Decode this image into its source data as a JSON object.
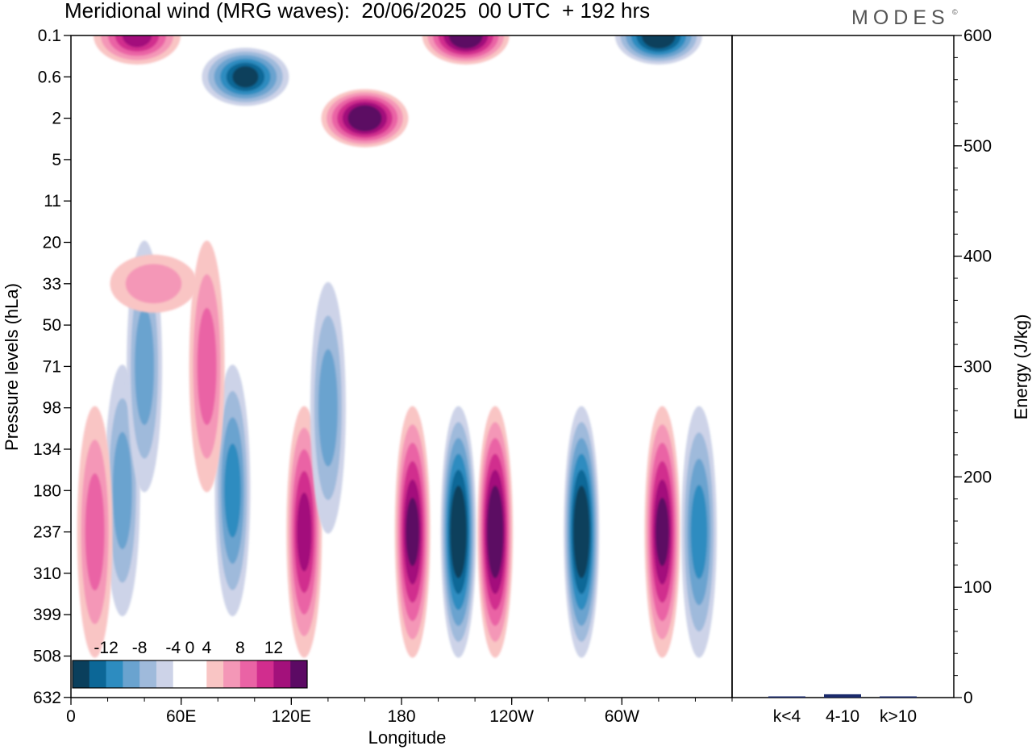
{
  "header": {
    "title": "Meridional wind (MRG waves):  20/06/2025  00 UTC  + 192 hrs",
    "brand": "MODES",
    "brand_mark": "©"
  },
  "chart_data": [
    {
      "type": "heatmap",
      "title": "Meridional wind (MRG waves):  20/06/2025  00 UTC  + 192 hrs",
      "xlabel": "Longitude",
      "ylabel": "Pressure levels (hLa)",
      "x_ticks": [
        "0",
        "60E",
        "120E",
        "180",
        "120W",
        "60W"
      ],
      "x_tick_degrees": [
        0,
        60,
        120,
        180,
        240,
        300
      ],
      "xlim": [
        0,
        360
      ],
      "y_ticks": [
        "0.1",
        "0.6",
        "2",
        "5",
        "11",
        "20",
        "33",
        "50",
        "71",
        "98",
        "134",
        "180",
        "237",
        "310",
        "399",
        "508",
        "632"
      ],
      "colorbar": {
        "labels": [
          "-12",
          "-8",
          "-4",
          "0",
          "4",
          "8",
          "12"
        ],
        "levels": [
          -14,
          -12,
          -10,
          -8,
          -6,
          -4,
          -2,
          2,
          4,
          6,
          8,
          10,
          12,
          14
        ],
        "colors": [
          "#0a3f5c",
          "#0c6797",
          "#2d8cc0",
          "#6aa3cf",
          "#9fbadb",
          "#cdd3e8",
          "#ffffff",
          "#ffffff",
          "#f9c5c4",
          "#f497b7",
          "#ea63a5",
          "#d12d8e",
          "#a3117b",
          "#5c0a64"
        ]
      },
      "features": [
        {
          "sign": "neg",
          "lon": 28,
          "level": 180,
          "magnitude": 5
        },
        {
          "sign": "neg",
          "lon": 88,
          "level": 180,
          "magnitude": 7
        },
        {
          "sign": "pos",
          "lon": 13,
          "level": 237,
          "magnitude": 6
        },
        {
          "sign": "pos",
          "lon": 127,
          "level": 237,
          "magnitude": 10
        },
        {
          "sign": "pos",
          "lon": 186,
          "level": 237,
          "magnitude": 12
        },
        {
          "sign": "neg",
          "lon": 211,
          "level": 237,
          "magnitude": 14
        },
        {
          "sign": "pos",
          "lon": 231,
          "level": 237,
          "magnitude": 14
        },
        {
          "sign": "neg",
          "lon": 278,
          "level": 237,
          "magnitude": 14
        },
        {
          "sign": "pos",
          "lon": 322,
          "level": 237,
          "magnitude": 12
        },
        {
          "sign": "neg",
          "lon": 342,
          "level": 237,
          "magnitude": 8
        },
        {
          "sign": "neg",
          "lon": 40,
          "level": 71,
          "magnitude": 5
        },
        {
          "sign": "pos",
          "lon": 74,
          "level": 71,
          "magnitude": 5
        },
        {
          "sign": "neg",
          "lon": 140,
          "level": 98,
          "magnitude": 5
        },
        {
          "sign": "pos",
          "lon": 36,
          "level": "0.1",
          "magnitude": 10
        },
        {
          "sign": "neg",
          "lon": 95,
          "level": "0.6",
          "magnitude": 12
        },
        {
          "sign": "pos",
          "lon": 160,
          "level": "2",
          "magnitude": 14
        },
        {
          "sign": "pos",
          "lon": 215,
          "level": "0.1",
          "magnitude": 14
        },
        {
          "sign": "neg",
          "lon": 320,
          "level": "0.1",
          "magnitude": 14
        },
        {
          "sign": "pos",
          "lon": 45,
          "level": 33,
          "magnitude": 4
        }
      ]
    },
    {
      "type": "bar",
      "categories": [
        "k<4",
        "4-10",
        "k>10"
      ],
      "values": [
        1,
        3,
        1
      ],
      "ylabel": "Energy (J/kg)",
      "ylim": [
        0,
        600
      ],
      "y_ticks": [
        "0",
        "100",
        "200",
        "300",
        "400",
        "500",
        "600"
      ],
      "bar_color": "#1a2a6c"
    }
  ]
}
